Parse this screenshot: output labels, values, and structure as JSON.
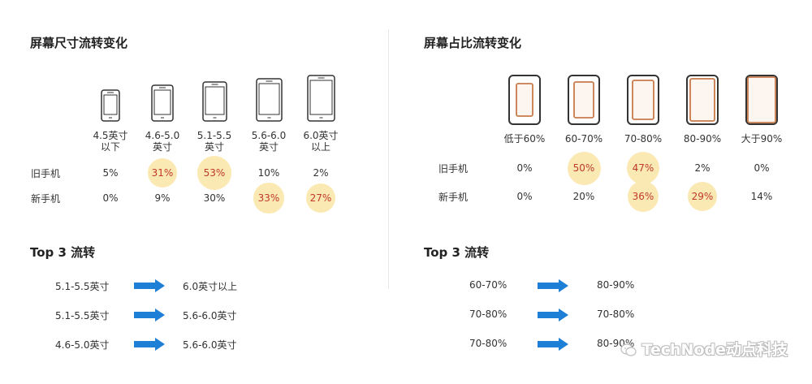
{
  "colors": {
    "highlight_bubble": "#fbe9b3",
    "highlight_text": "#c0392b",
    "arrow": "#1e7fd6",
    "phone_inner": "#c77a4a",
    "phone_outline": "#333333"
  },
  "left": {
    "title": "屏幕尺寸流转变化",
    "columns": [
      [
        "4.5英寸",
        "以下"
      ],
      [
        "4.6-5.0",
        "英寸"
      ],
      [
        "5.1-5.5",
        "英寸"
      ],
      [
        "5.6-6.0",
        "英寸"
      ],
      [
        "6.0英寸",
        "以上"
      ]
    ],
    "rows": [
      {
        "label": "旧手机",
        "values": [
          "5%",
          "31%",
          "53%",
          "10%",
          "2%"
        ],
        "highlight": [
          false,
          true,
          true,
          false,
          false
        ]
      },
      {
        "label": "新手机",
        "values": [
          "0%",
          "9%",
          "30%",
          "33%",
          "27%"
        ],
        "highlight": [
          false,
          false,
          false,
          true,
          true
        ]
      }
    ],
    "top3_title": "Top 3 流转",
    "flows": [
      {
        "from": "5.1-5.5英寸",
        "to": "6.0英寸以上"
      },
      {
        "from": "5.1-5.5英寸",
        "to": "5.6-6.0英寸"
      },
      {
        "from": "4.6-5.0英寸",
        "to": "5.6-6.0英寸"
      }
    ]
  },
  "right": {
    "title": "屏幕占比流转变化",
    "columns": [
      "低于60%",
      "60-70%",
      "70-80%",
      "80-90%",
      "大于90%"
    ],
    "rows": [
      {
        "label": "旧手机",
        "values": [
          "0%",
          "50%",
          "47%",
          "2%",
          "0%"
        ],
        "highlight": [
          false,
          true,
          true,
          false,
          false
        ]
      },
      {
        "label": "新手机",
        "values": [
          "0%",
          "20%",
          "36%",
          "29%",
          "14%"
        ],
        "highlight": [
          false,
          false,
          true,
          true,
          false
        ]
      }
    ],
    "top3_title": "Top 3 流转",
    "flows": [
      {
        "from": "60-70%",
        "to": "80-90%"
      },
      {
        "from": "70-80%",
        "to": "70-80%"
      },
      {
        "from": "70-80%",
        "to": "80-90%"
      }
    ]
  },
  "chart_data": [
    {
      "type": "table",
      "title": "屏幕尺寸流转变化",
      "categories": [
        "4.5英寸以下",
        "4.6-5.0英寸",
        "5.1-5.5英寸",
        "5.6-6.0英寸",
        "6.0英寸以上"
      ],
      "series": [
        {
          "name": "旧手机",
          "values": [
            5,
            31,
            53,
            10,
            2
          ]
        },
        {
          "name": "新手机",
          "values": [
            0,
            9,
            30,
            33,
            27
          ]
        }
      ],
      "unit": "%"
    },
    {
      "type": "table",
      "title": "屏幕占比流转变化",
      "categories": [
        "低于60%",
        "60-70%",
        "70-80%",
        "80-90%",
        "大于90%"
      ],
      "series": [
        {
          "name": "旧手机",
          "values": [
            0,
            50,
            47,
            2,
            0
          ]
        },
        {
          "name": "新手机",
          "values": [
            0,
            20,
            36,
            29,
            14
          ]
        }
      ],
      "unit": "%"
    }
  ],
  "watermark": "TechNode动点科技"
}
